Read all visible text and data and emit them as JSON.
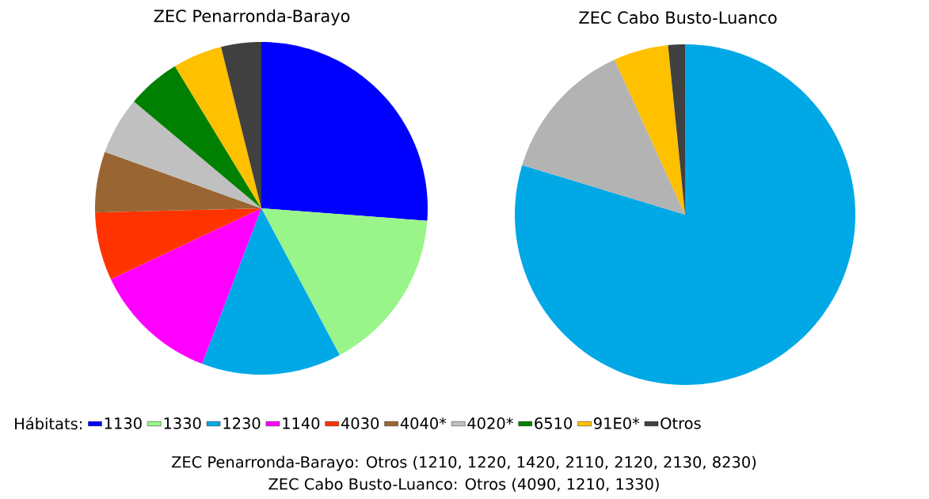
{
  "chart_data": [
    {
      "type": "pie",
      "title": "ZEC Penarronda-Barayo",
      "legend": "bottom",
      "legend_title": "Hábitats:",
      "categories": [
        "1130",
        "1330",
        "1230",
        "1140",
        "4030",
        "4040*",
        "4020*",
        "6510",
        "91E0*",
        "Otros"
      ],
      "values": [
        26.2,
        16,
        13.6,
        12.2,
        6.6,
        5.9,
        5.6,
        5.2,
        4.8,
        3.9
      ],
      "colors": [
        "#0000ff",
        "#99f58a",
        "#00a8e6",
        "#ff00ff",
        "#ff3300",
        "#996633",
        "#c0c0c0",
        "#008000",
        "#ffc000",
        "#404040"
      ],
      "annotations": [
        "ZEC Penarronda-Barayo: Otros (1210, 1220, 1420, 2110, 2120, 2130, 8230)",
        "ZEC Cabo Busto-Luanco: Otros  (4090, 1210, 1330)"
      ]
    },
    {
      "type": "pie",
      "title": "ZEC Cabo Busto-Luanco",
      "categories": [
        null,
        null,
        null,
        null
      ],
      "values": [
        79.7,
        13.5,
        5.2,
        1.6
      ],
      "colors": [
        "#00a8e6",
        "#b3b3b3",
        "#ffc000",
        "#404040"
      ]
    }
  ]
}
